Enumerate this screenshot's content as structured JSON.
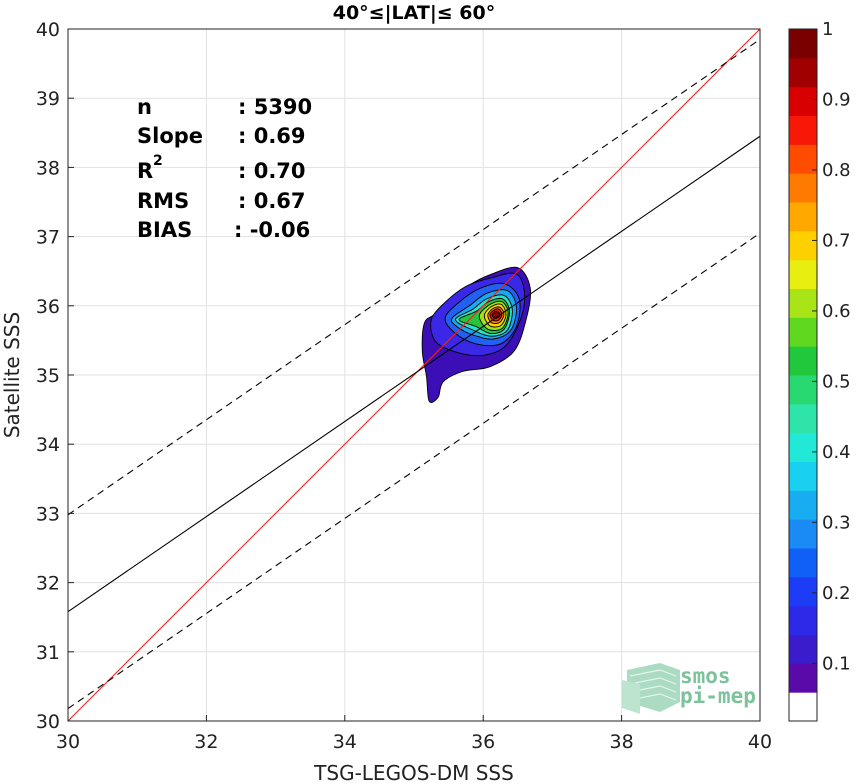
{
  "chart_data": {
    "type": "scatter",
    "title": "40°≤|LAT|≤ 60°",
    "xlabel": "TSG-LEGOS-DM SSS",
    "ylabel": "Satellite SSS",
    "xlim": [
      30,
      40
    ],
    "ylim": [
      30,
      40
    ],
    "xticks": [
      30,
      32,
      34,
      36,
      38,
      40
    ],
    "yticks": [
      30,
      31,
      32,
      33,
      34,
      35,
      36,
      37,
      38,
      39,
      40
    ],
    "grid": true,
    "stats": [
      {
        "label": "n",
        "value": ": 5390"
      },
      {
        "label": "Slope",
        "value": ": 0.69"
      },
      {
        "label": "R",
        "sup": "2",
        "value": ": 0.70"
      },
      {
        "label": "RMS",
        "value": ": 0.67"
      },
      {
        "label": "BIAS",
        "value": ": -0.06"
      }
    ],
    "lines": [
      {
        "name": "identity",
        "color": "#e8231c",
        "dash": "none",
        "points": [
          [
            30,
            30
          ],
          [
            40,
            40
          ]
        ]
      },
      {
        "name": "regression",
        "color": "#000000",
        "dash": "none",
        "points": [
          [
            30,
            31.58
          ],
          [
            40,
            38.45
          ]
        ]
      },
      {
        "name": "upper-bound",
        "color": "#000000",
        "dash": "7,5",
        "points": [
          [
            30,
            32.98
          ],
          [
            40,
            39.85
          ]
        ]
      },
      {
        "name": "lower-bound",
        "color": "#000000",
        "dash": "7,5",
        "points": [
          [
            30,
            30.18
          ],
          [
            40,
            37.05
          ]
        ]
      }
    ],
    "density": {
      "peak": [
        36.18,
        35.88
      ],
      "levels": [
        {
          "level": 0.05,
          "color": "#3b0fb5",
          "pts": [
            [
              35.15,
              35.75
            ],
            [
              35.3,
              35.88
            ],
            [
              35.55,
              36.12
            ],
            [
              35.8,
              36.3
            ],
            [
              36.1,
              36.45
            ],
            [
              36.5,
              36.55
            ],
            [
              36.68,
              36.25
            ],
            [
              36.62,
              35.8
            ],
            [
              36.45,
              35.35
            ],
            [
              36.1,
              35.12
            ],
            [
              35.7,
              35.05
            ],
            [
              35.42,
              34.9
            ],
            [
              35.35,
              34.68
            ],
            [
              35.22,
              34.62
            ],
            [
              35.18,
              34.98
            ],
            [
              35.12,
              35.35
            ]
          ]
        },
        {
          "level": 0.1,
          "color": "#3a28e6",
          "pts": [
            [
              35.25,
              35.8
            ],
            [
              35.45,
              36.05
            ],
            [
              35.75,
              36.28
            ],
            [
              36.1,
              36.4
            ],
            [
              36.48,
              36.46
            ],
            [
              36.6,
              36.15
            ],
            [
              36.52,
              35.75
            ],
            [
              36.3,
              35.4
            ],
            [
              35.95,
              35.28
            ],
            [
              35.55,
              35.35
            ],
            [
              35.3,
              35.5
            ]
          ]
        },
        {
          "level": 0.2,
          "color": "#2160f0",
          "pts": [
            [
              35.45,
              35.82
            ],
            [
              35.65,
              36.05
            ],
            [
              35.95,
              36.25
            ],
            [
              36.3,
              36.32
            ],
            [
              36.52,
              36.1
            ],
            [
              36.48,
              35.7
            ],
            [
              36.25,
              35.45
            ],
            [
              35.9,
              35.45
            ],
            [
              35.6,
              35.6
            ]
          ]
        },
        {
          "level": 0.3,
          "color": "#18a8f2",
          "pts": [
            [
              35.55,
              35.82
            ],
            [
              35.8,
              36.0
            ],
            [
              36.05,
              36.18
            ],
            [
              36.35,
              36.22
            ],
            [
              36.48,
              35.98
            ],
            [
              36.4,
              35.65
            ],
            [
              36.15,
              35.52
            ],
            [
              35.85,
              35.58
            ],
            [
              35.62,
              35.7
            ]
          ]
        },
        {
          "level": 0.4,
          "color": "#2ee0c8",
          "pts": [
            [
              35.6,
              35.8
            ],
            [
              35.85,
              35.95
            ],
            [
              36.05,
              36.1
            ],
            [
              36.3,
              36.15
            ],
            [
              36.42,
              35.95
            ],
            [
              36.35,
              35.65
            ],
            [
              36.12,
              35.56
            ],
            [
              35.85,
              35.65
            ]
          ]
        },
        {
          "level": 0.5,
          "color": "#24c43c",
          "pts": [
            [
              35.65,
              35.8
            ],
            [
              35.9,
              35.92
            ],
            [
              36.08,
              36.06
            ],
            [
              36.28,
              36.1
            ],
            [
              36.38,
              35.92
            ],
            [
              36.3,
              35.66
            ],
            [
              36.1,
              35.6
            ],
            [
              35.9,
              35.7
            ]
          ]
        },
        {
          "level": 0.6,
          "color": "#a4e018",
          "pts": [
            [
              35.95,
              35.88
            ],
            [
              36.1,
              36.02
            ],
            [
              36.27,
              36.06
            ],
            [
              36.36,
              35.9
            ],
            [
              36.28,
              35.68
            ],
            [
              36.1,
              35.65
            ],
            [
              35.98,
              35.75
            ]
          ]
        },
        {
          "level": 0.7,
          "color": "#ffd400",
          "pts": [
            [
              36.02,
              35.88
            ],
            [
              36.12,
              35.99
            ],
            [
              36.26,
              36.02
            ],
            [
              36.33,
              35.88
            ],
            [
              36.26,
              35.72
            ],
            [
              36.12,
              35.7
            ],
            [
              36.04,
              35.78
            ]
          ]
        },
        {
          "level": 0.8,
          "color": "#ff7a00",
          "pts": [
            [
              36.07,
              35.88
            ],
            [
              36.14,
              35.96
            ],
            [
              36.24,
              35.98
            ],
            [
              36.3,
              35.88
            ],
            [
              36.24,
              35.76
            ],
            [
              36.13,
              35.75
            ],
            [
              36.08,
              35.81
            ]
          ]
        },
        {
          "level": 0.9,
          "color": "#f01e10",
          "pts": [
            [
              36.1,
              35.88
            ],
            [
              36.16,
              35.94
            ],
            [
              36.23,
              35.95
            ],
            [
              36.27,
              35.87
            ],
            [
              36.22,
              35.79
            ],
            [
              36.15,
              35.79
            ],
            [
              36.11,
              35.83
            ]
          ]
        },
        {
          "level": 1.0,
          "color": "#8a0000",
          "pts": [
            [
              36.13,
              35.88
            ],
            [
              36.18,
              35.92
            ],
            [
              36.23,
              35.9
            ],
            [
              36.24,
              35.85
            ],
            [
              36.19,
              35.82
            ],
            [
              36.14,
              35.84
            ]
          ]
        }
      ]
    },
    "colorbar": {
      "ticks": [
        "0.1",
        "0.2",
        "0.3",
        "0.4",
        "0.5",
        "0.6",
        "0.7",
        "0.8",
        "0.9",
        "1"
      ],
      "tick_values": [
        0.1,
        0.2,
        0.3,
        0.4,
        0.5,
        0.6,
        0.7,
        0.8,
        0.9,
        1.0
      ],
      "colors": [
        "#ffffff",
        "#5a0aa8",
        "#3a1ccc",
        "#2c2ae8",
        "#1c3cf6",
        "#1060f8",
        "#1a8af4",
        "#18acf0",
        "#1ad0f0",
        "#22e8d8",
        "#2ee4a8",
        "#28d870",
        "#22c83c",
        "#60d820",
        "#a8e418",
        "#e8ee10",
        "#ffd000",
        "#ffa800",
        "#ff7a00",
        "#ff4c00",
        "#f81808",
        "#d80000",
        "#a00000",
        "#7a0000"
      ]
    },
    "watermark": [
      "smos",
      "pi-mep"
    ]
  }
}
